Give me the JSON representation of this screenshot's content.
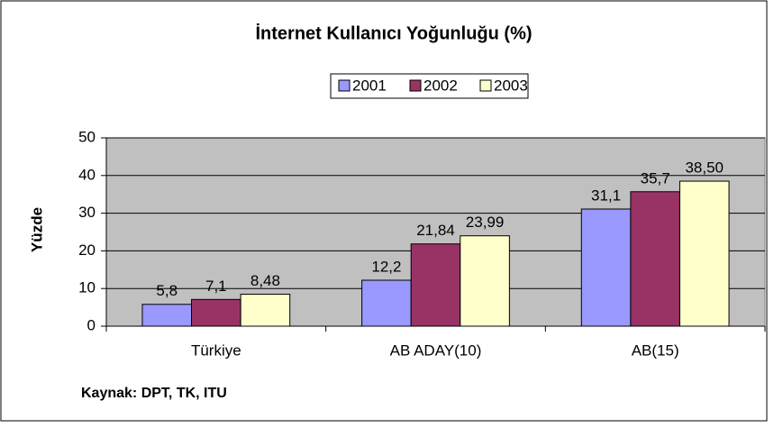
{
  "chart_data": {
    "type": "bar",
    "title": "İnternet Kullanıcı Yoğunluğu (%)",
    "y_label": "Yüzde",
    "source": "Kaynak: DPT, TK, ITU",
    "categories": [
      "Türkiye",
      "AB ADAY(10)",
      "AB(15)"
    ],
    "series": [
      {
        "name": "2001",
        "color": "#9999ff",
        "values": [
          5.8,
          12.2,
          31.1
        ],
        "value_labels": [
          "5,8",
          "12,2",
          "31,1"
        ]
      },
      {
        "name": "2002",
        "color": "#993366",
        "values": [
          7.1,
          21.84,
          35.7
        ],
        "value_labels": [
          "7,1",
          "21,84",
          "35,7"
        ]
      },
      {
        "name": "2003",
        "color": "#ffffcc",
        "values": [
          8.48,
          23.99,
          38.5
        ],
        "value_labels": [
          "8,48",
          "23,99",
          "38,50"
        ]
      }
    ],
    "ylim": [
      0,
      50
    ],
    "yticks": [
      0,
      10,
      20,
      30,
      40,
      50
    ],
    "grid": true,
    "legend": "top"
  }
}
